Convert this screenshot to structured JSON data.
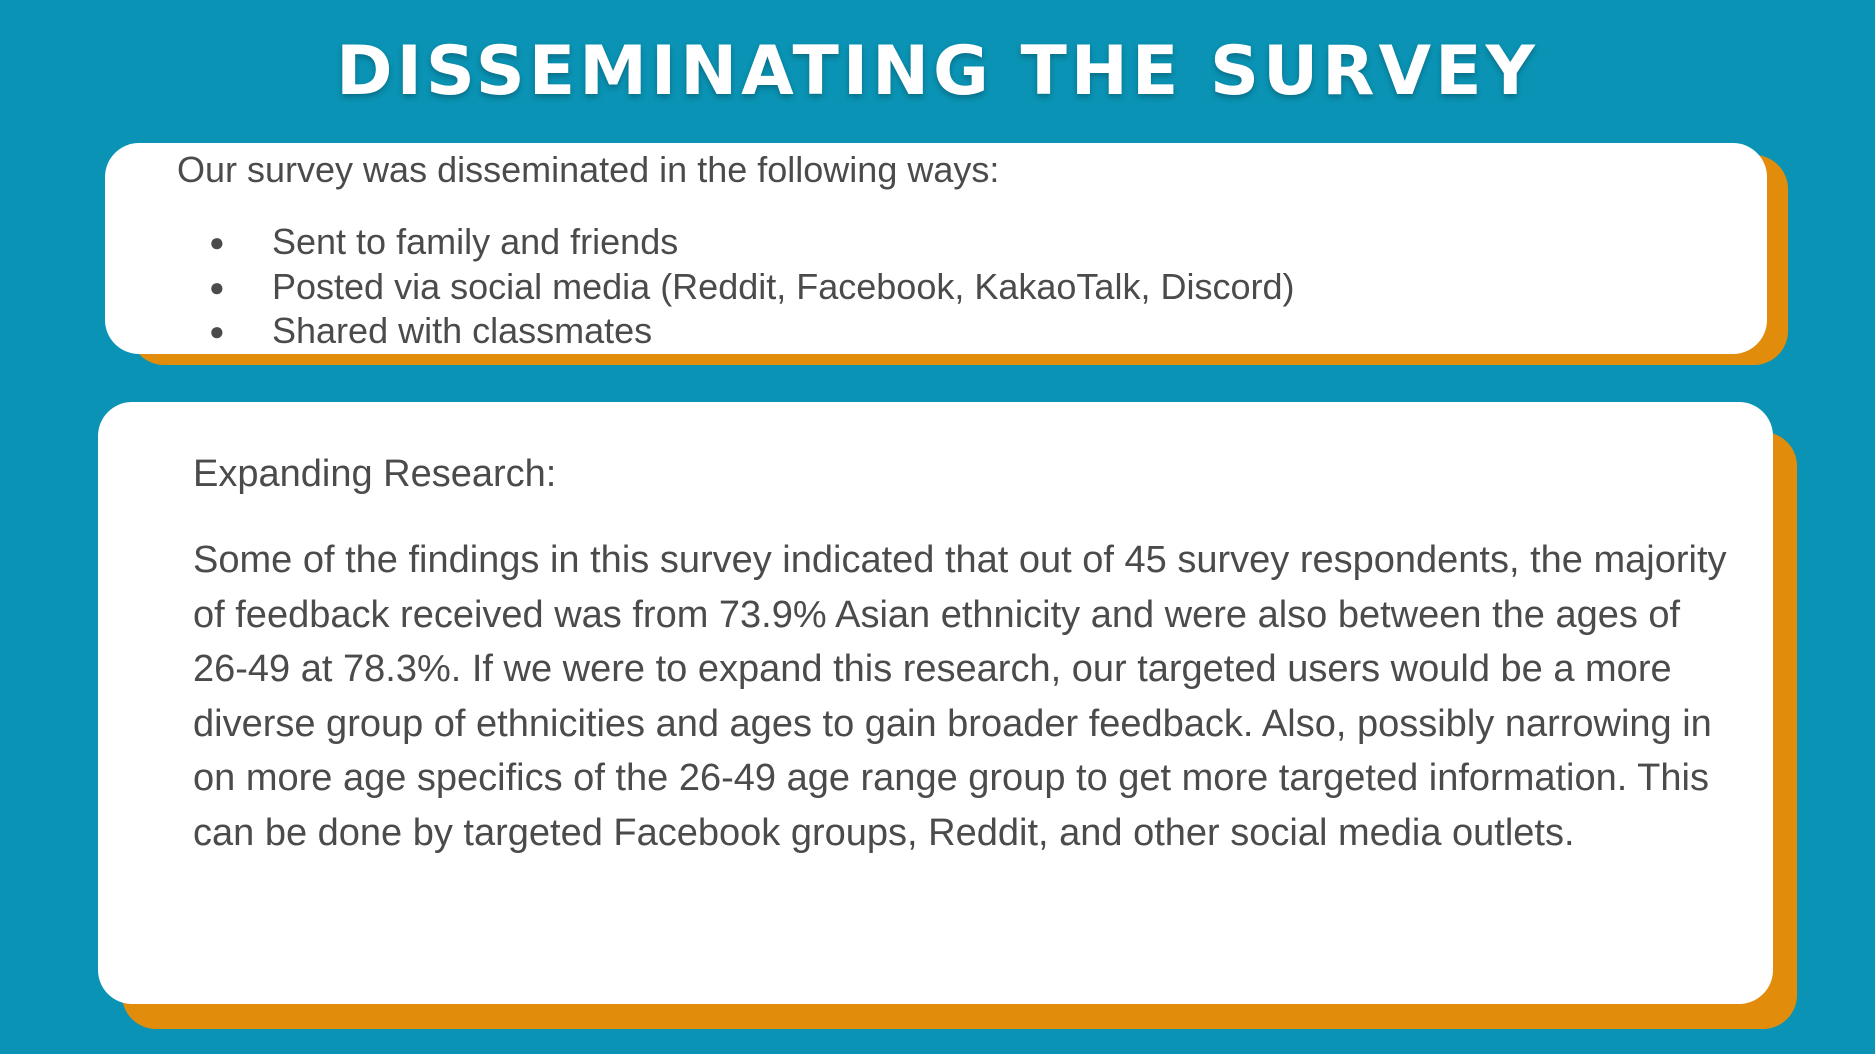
{
  "slide": {
    "title": "DISSEMINATING THE SURVEY"
  },
  "dissemination": {
    "intro": "Our survey was disseminated in the following ways:",
    "bullet_symbol": "●",
    "items": [
      "Sent to family and friends",
      "Posted via social media (Reddit, Facebook, KakaoTalk, Discord)",
      "Shared with classmates"
    ]
  },
  "expanding": {
    "heading": "Expanding Research:",
    "body": "Some of the findings in this survey indicated that out of 45 survey respondents, the majority of feedback received was from 73.9% Asian ethnicity and were also between the ages of 26-49 at 78.3%. If we were to expand this research, our targeted users would be a more diverse group of ethnicities and ages to gain broader feedback. Also, possibly narrowing in on more age specifics of the 26-49 age range group to get more targeted information. This can be done by targeted Facebook groups, Reddit, and other social media outlets."
  },
  "colors": {
    "background": "#0a93b4",
    "card": "#ffffff",
    "accent_shadow": "#e18d0b",
    "text": "#4b4b4b"
  }
}
